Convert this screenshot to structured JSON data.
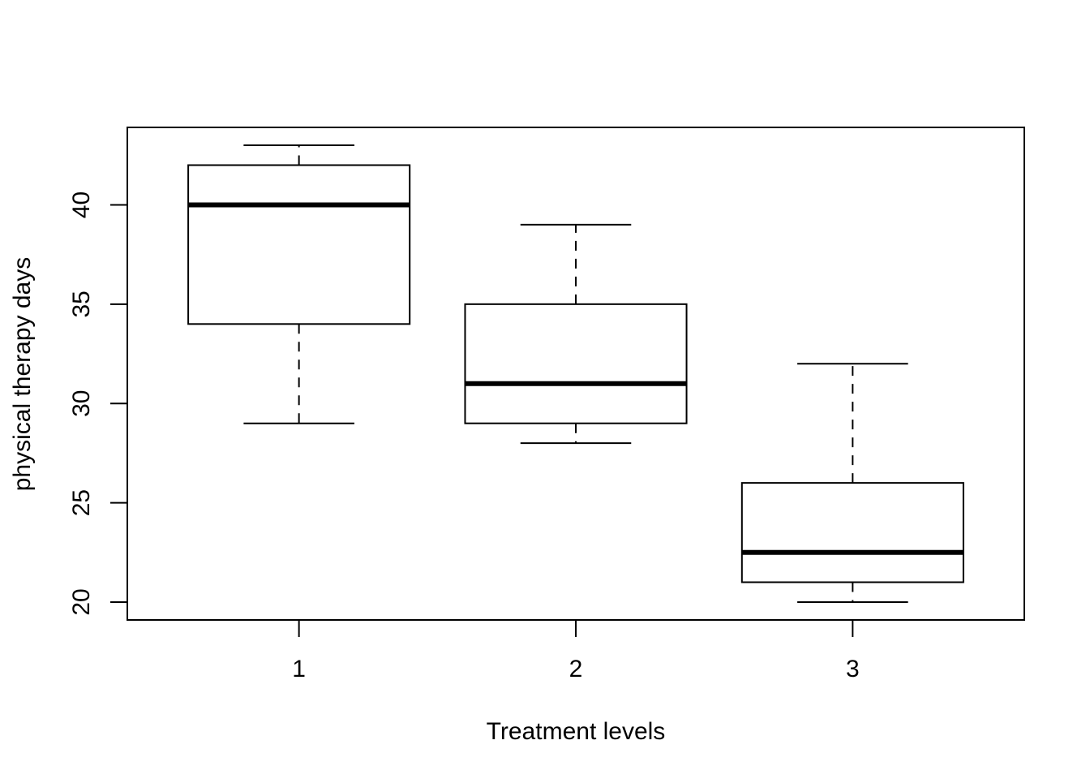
{
  "chart_data": {
    "type": "boxplot",
    "title": "",
    "xlabel": "Treatment levels",
    "ylabel": "physical therapy days",
    "categories": [
      "1",
      "2",
      "3"
    ],
    "boxes": [
      {
        "category": "1",
        "whisker_low": 29,
        "q1": 34,
        "median": 40,
        "q3": 42,
        "whisker_high": 43
      },
      {
        "category": "2",
        "whisker_low": 28,
        "q1": 29,
        "median": 31,
        "q3": 35,
        "whisker_high": 39
      },
      {
        "category": "3",
        "whisker_low": 20,
        "q1": 21,
        "median": 22.5,
        "q3": 26,
        "whisker_high": 32
      }
    ],
    "yticks": [
      "20",
      "25",
      "30",
      "35",
      "40"
    ],
    "ylim": [
      19.1,
      43.9
    ],
    "xlim": [
      0.38,
      3.62
    ],
    "grid": false,
    "legend": "none"
  }
}
